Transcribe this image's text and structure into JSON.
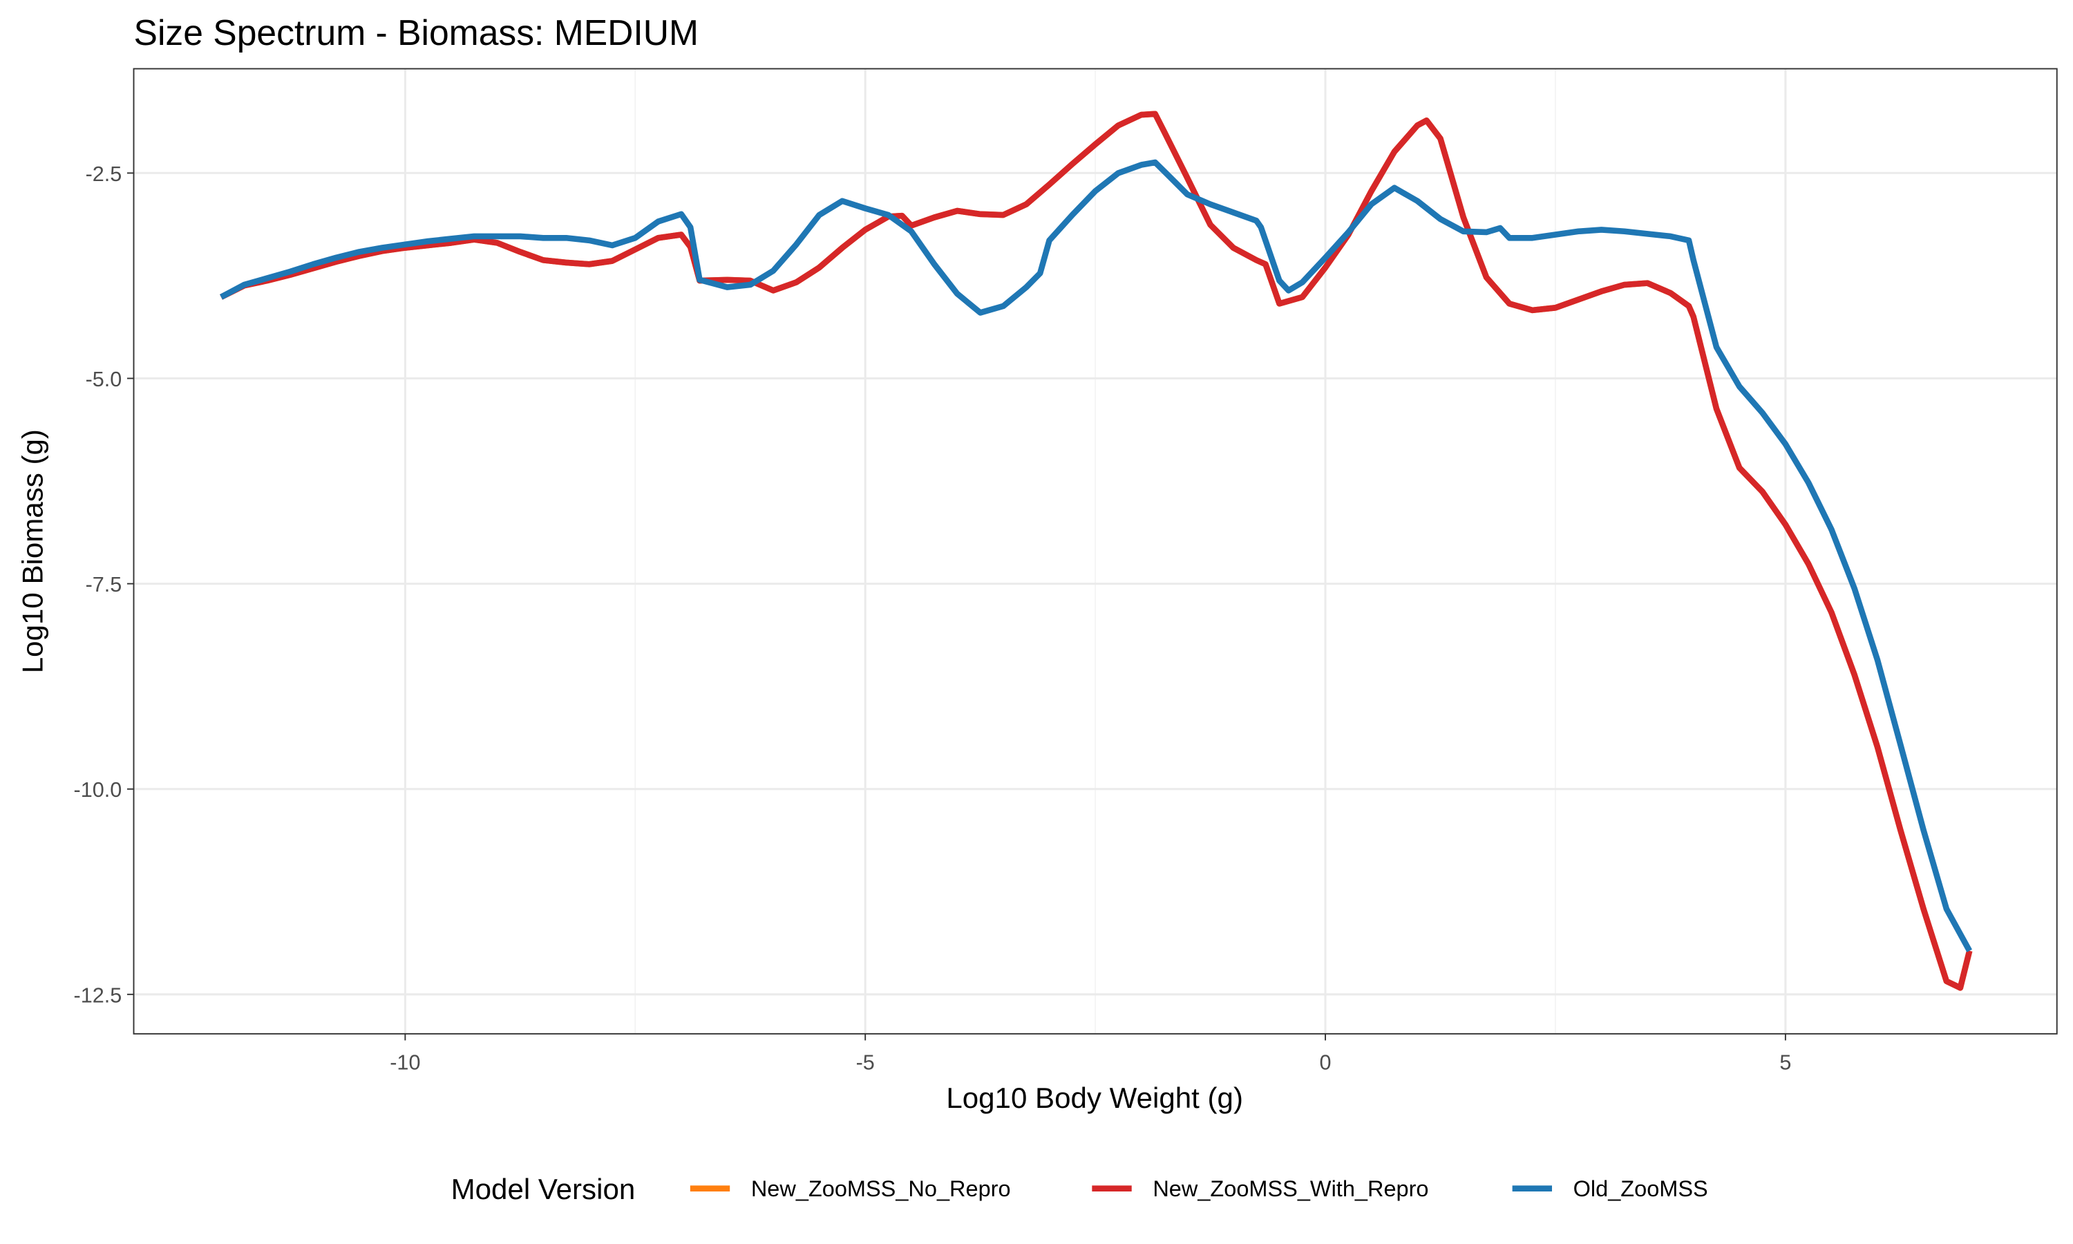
{
  "chart_data": {
    "type": "line",
    "title": "Size Spectrum - Biomass: MEDIUM",
    "x_label": "Log10 Body Weight (g)",
    "y_label": "Log10 Biomass (g)",
    "legend_title": "Model Version",
    "legend": "bottom",
    "grid": true,
    "xlim": [
      -12.95,
      7.95
    ],
    "ylim": [
      -12.98,
      -1.23
    ],
    "xticks": [
      -10,
      -5,
      0,
      5
    ],
    "yticks": [
      -2.5,
      -5.0,
      -7.5,
      -10.0,
      -12.5
    ],
    "ytick_labels": [
      "-2.5",
      "-5.0",
      "-7.5",
      "-10.0",
      "-12.5"
    ],
    "series": [
      {
        "name": "New_ZooMSS_No_Repro",
        "color": "#ff7f0e",
        "x": [
          -12,
          -11.75,
          -11.5,
          -11.25,
          -11,
          -10.75,
          -10.5,
          -10.25,
          -10,
          -9.75,
          -9.5,
          -9.25,
          -9,
          -8.75,
          -8.5,
          -8.25,
          -8,
          -7.75,
          -7.5,
          -7.25,
          -7,
          -6.9,
          -6.8,
          -6.5,
          -6.25,
          -6,
          -5.75,
          -5.5,
          -5.25,
          -5,
          -4.75,
          -4.6,
          -4.5,
          -4.25,
          -4,
          -3.75,
          -3.5,
          -3.25,
          -3,
          -2.75,
          -2.5,
          -2.25,
          -2,
          -1.85,
          -1.75,
          -1.5,
          -1.25,
          -1,
          -0.75,
          -0.65,
          -0.5,
          -0.25,
          0,
          0.25,
          0.5,
          0.75,
          1,
          1.1,
          1.25,
          1.5,
          1.75,
          2,
          2.25,
          2.5,
          2.75,
          3,
          3.25,
          3.5,
          3.75,
          3.95,
          4,
          4.25,
          4.5,
          4.75,
          5,
          5.25,
          5.5,
          5.75,
          6,
          6.25,
          6.5,
          6.75,
          6.9,
          7
        ],
        "values": [
          -4.01,
          -3.87,
          -3.81,
          -3.74,
          -3.66,
          -3.58,
          -3.51,
          -3.45,
          -3.41,
          -3.38,
          -3.35,
          -3.31,
          -3.35,
          -3.46,
          -3.56,
          -3.59,
          -3.61,
          -3.57,
          -3.43,
          -3.29,
          -3.25,
          -3.4,
          -3.81,
          -3.8,
          -3.81,
          -3.93,
          -3.83,
          -3.65,
          -3.41,
          -3.19,
          -3.03,
          -3.02,
          -3.14,
          -3.04,
          -2.96,
          -3.0,
          -3.01,
          -2.88,
          -2.64,
          -2.39,
          -2.15,
          -1.92,
          -1.79,
          -1.78,
          -2.0,
          -2.56,
          -3.13,
          -3.41,
          -3.56,
          -3.61,
          -4.09,
          -4.01,
          -3.65,
          -3.25,
          -2.72,
          -2.24,
          -1.92,
          -1.86,
          -2.08,
          -3.04,
          -3.77,
          -4.09,
          -4.17,
          -4.14,
          -4.04,
          -3.94,
          -3.86,
          -3.84,
          -3.96,
          -4.12,
          -4.25,
          -5.37,
          -6.09,
          -6.38,
          -6.78,
          -7.26,
          -7.85,
          -8.61,
          -9.49,
          -10.5,
          -11.46,
          -12.34,
          -12.42,
          -11.97
        ]
      },
      {
        "name": "New_ZooMSS_With_Repro",
        "color": "#d62728",
        "x": [
          -12,
          -11.75,
          -11.5,
          -11.25,
          -11,
          -10.75,
          -10.5,
          -10.25,
          -10,
          -9.75,
          -9.5,
          -9.25,
          -9,
          -8.75,
          -8.5,
          -8.25,
          -8,
          -7.75,
          -7.5,
          -7.25,
          -7,
          -6.9,
          -6.8,
          -6.5,
          -6.25,
          -6,
          -5.75,
          -5.5,
          -5.25,
          -5,
          -4.75,
          -4.6,
          -4.5,
          -4.25,
          -4,
          -3.75,
          -3.5,
          -3.25,
          -3,
          -2.75,
          -2.5,
          -2.25,
          -2,
          -1.85,
          -1.75,
          -1.5,
          -1.25,
          -1,
          -0.75,
          -0.65,
          -0.5,
          -0.25,
          0,
          0.25,
          0.5,
          0.75,
          1,
          1.1,
          1.25,
          1.5,
          1.75,
          2,
          2.25,
          2.5,
          2.75,
          3,
          3.25,
          3.5,
          3.75,
          3.95,
          4,
          4.25,
          4.5,
          4.75,
          5,
          5.25,
          5.5,
          5.75,
          6,
          6.25,
          6.5,
          6.75,
          6.9,
          7
        ],
        "values": [
          -4.01,
          -3.87,
          -3.81,
          -3.74,
          -3.66,
          -3.58,
          -3.51,
          -3.45,
          -3.41,
          -3.38,
          -3.35,
          -3.31,
          -3.35,
          -3.46,
          -3.56,
          -3.59,
          -3.61,
          -3.57,
          -3.43,
          -3.29,
          -3.25,
          -3.4,
          -3.81,
          -3.8,
          -3.81,
          -3.93,
          -3.83,
          -3.65,
          -3.41,
          -3.19,
          -3.03,
          -3.02,
          -3.14,
          -3.04,
          -2.96,
          -3.0,
          -3.01,
          -2.88,
          -2.64,
          -2.39,
          -2.15,
          -1.92,
          -1.79,
          -1.78,
          -2.0,
          -2.56,
          -3.13,
          -3.41,
          -3.56,
          -3.61,
          -4.09,
          -4.01,
          -3.65,
          -3.25,
          -2.72,
          -2.24,
          -1.92,
          -1.86,
          -2.08,
          -3.04,
          -3.77,
          -4.09,
          -4.17,
          -4.14,
          -4.04,
          -3.94,
          -3.86,
          -3.84,
          -3.96,
          -4.12,
          -4.25,
          -5.37,
          -6.09,
          -6.38,
          -6.78,
          -7.26,
          -7.85,
          -8.61,
          -9.49,
          -10.5,
          -11.46,
          -12.34,
          -12.42,
          -11.97
        ]
      },
      {
        "name": "Old_ZooMSS",
        "color": "#1f77b4",
        "x": [
          -12,
          -11.75,
          -11.5,
          -11.25,
          -11,
          -10.75,
          -10.5,
          -10.25,
          -10,
          -9.75,
          -9.5,
          -9.25,
          -9,
          -8.75,
          -8.5,
          -8.25,
          -8,
          -7.75,
          -7.5,
          -7.25,
          -7,
          -6.9,
          -6.8,
          -6.5,
          -6.25,
          -6,
          -5.75,
          -5.5,
          -5.25,
          -5,
          -4.75,
          -4.5,
          -4.25,
          -4,
          -3.75,
          -3.5,
          -3.25,
          -3.1,
          -3,
          -2.75,
          -2.5,
          -2.25,
          -2,
          -1.85,
          -1.75,
          -1.5,
          -1.25,
          -1,
          -0.75,
          -0.7,
          -0.5,
          -0.4,
          -0.25,
          0,
          0.25,
          0.5,
          0.75,
          1,
          1.25,
          1.5,
          1.75,
          1.9,
          2,
          2.25,
          2.5,
          2.75,
          3,
          3.25,
          3.5,
          3.75,
          3.95,
          4,
          4.25,
          4.5,
          4.75,
          5,
          5.25,
          5.5,
          5.75,
          6,
          6.25,
          6.5,
          6.75,
          7
        ],
        "values": [
          -4.01,
          -3.86,
          -3.78,
          -3.7,
          -3.61,
          -3.53,
          -3.46,
          -3.41,
          -3.37,
          -3.33,
          -3.3,
          -3.27,
          -3.27,
          -3.27,
          -3.29,
          -3.29,
          -3.32,
          -3.38,
          -3.29,
          -3.09,
          -3.0,
          -3.16,
          -3.8,
          -3.89,
          -3.86,
          -3.69,
          -3.37,
          -3.01,
          -2.84,
          -2.93,
          -3.01,
          -3.21,
          -3.61,
          -3.97,
          -4.2,
          -4.12,
          -3.89,
          -3.72,
          -3.32,
          -3.01,
          -2.72,
          -2.5,
          -2.4,
          -2.37,
          -2.48,
          -2.76,
          -2.88,
          -2.98,
          -3.08,
          -3.16,
          -3.81,
          -3.93,
          -3.83,
          -3.53,
          -3.22,
          -2.88,
          -2.68,
          -2.84,
          -3.06,
          -3.21,
          -3.22,
          -3.17,
          -3.29,
          -3.29,
          -3.25,
          -3.21,
          -3.19,
          -3.21,
          -3.24,
          -3.27,
          -3.32,
          -3.56,
          -4.62,
          -5.1,
          -5.42,
          -5.8,
          -6.27,
          -6.84,
          -7.56,
          -8.43,
          -9.46,
          -10.5,
          -11.46,
          -11.97
        ]
      }
    ]
  }
}
